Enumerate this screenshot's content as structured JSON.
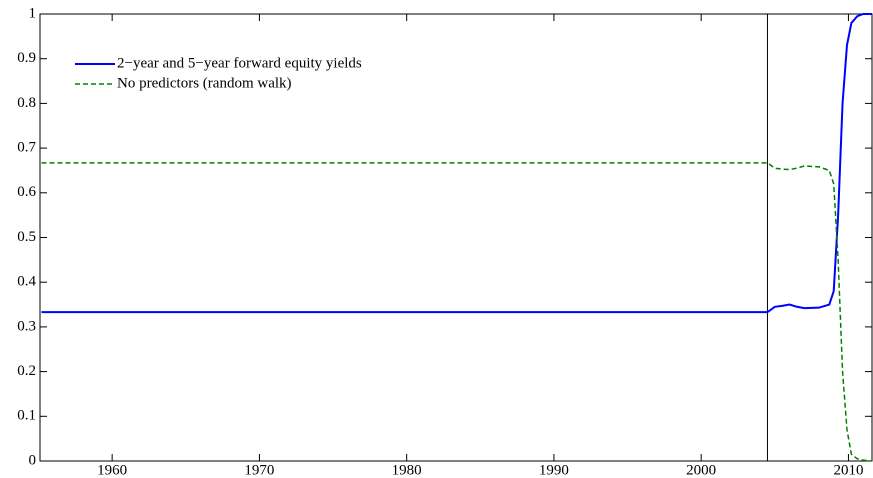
{
  "chart_data": {
    "type": "line",
    "x": [
      1955.2,
      2004.5,
      2005.0,
      2005.5,
      2006.0,
      2006.5,
      2007.0,
      2008.0,
      2008.7,
      2009.0,
      2009.3,
      2009.6,
      2009.9,
      2010.2,
      2010.6,
      2011.0,
      2011.6
    ],
    "series": [
      {
        "name": "2−year and 5−year forward equity yields",
        "color": "#0000ff",
        "dash": "solid",
        "values": [
          0.333,
          0.333,
          0.345,
          0.347,
          0.35,
          0.345,
          0.342,
          0.343,
          0.35,
          0.38,
          0.55,
          0.8,
          0.93,
          0.98,
          0.995,
          1.0,
          1.0
        ]
      },
      {
        "name": "No predictors (random walk)",
        "color": "#008000",
        "dash": "dashed",
        "values": [
          0.667,
          0.667,
          0.655,
          0.653,
          0.652,
          0.655,
          0.66,
          0.658,
          0.65,
          0.62,
          0.45,
          0.2,
          0.07,
          0.015,
          0.005,
          0.002,
          0.0
        ]
      }
    ],
    "vline_x": 2004.5,
    "xlim": [
      1955.1,
      2011.6
    ],
    "xticks": [
      1960,
      1970,
      1980,
      1990,
      2000,
      2010
    ],
    "ylim": [
      0,
      1
    ],
    "yticks": [
      0,
      0.1,
      0.2,
      0.3,
      0.4,
      0.5,
      0.6,
      0.7,
      0.8,
      0.9,
      1
    ],
    "grid": false,
    "legend": "upper-left"
  }
}
